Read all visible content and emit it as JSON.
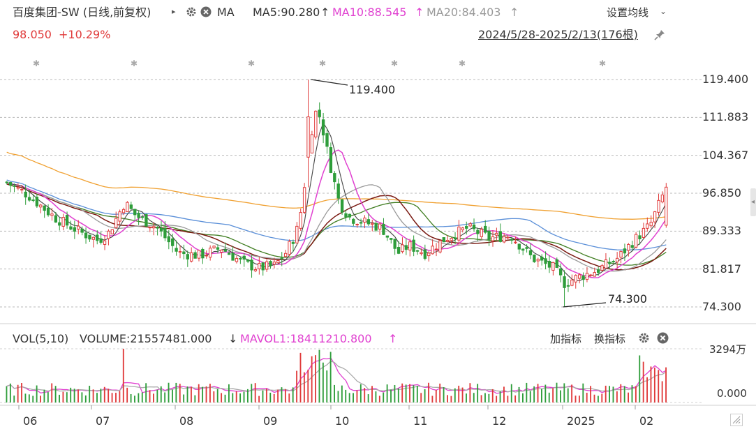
{
  "header": {
    "stock_title": "百度集团-SW (日线,前复权)",
    "ma_label": "MA",
    "ma5": "MA5:90.280",
    "ma10": "MA10:88.545",
    "ma20": "MA20:84.403",
    "price": "98.050",
    "change": "+10.29%",
    "settings_label": "设置均线",
    "date_range": "2024/5/28-2025/2/13(176根)"
  },
  "volume_header": {
    "vol_label": "VOL(5,10)",
    "volume_value": "VOLUME:21557481.000",
    "mavol1": "MAVOL1:18411210.800",
    "add_indicator": "加指标",
    "switch_indicator": "换指标"
  },
  "colors": {
    "up": "#e03a3a",
    "down": "#2e9d3a",
    "ma5": "#444444",
    "ma10": "#e040d0",
    "ma20": "#999999",
    "ma_dark": "#7a1a12",
    "ma_green": "#3f7d20",
    "ma_blue": "#5a8fd8",
    "ma_orange": "#f0a030",
    "price_text": "#e03a3a"
  },
  "chart_data": {
    "type": "candlestick",
    "y_ticks": [
      "119.400",
      "111.883",
      "104.367",
      "96.850",
      "89.333",
      "81.817",
      "74.300"
    ],
    "ylim": [
      74.3,
      119.4
    ],
    "volume_ticks": [
      "3294万",
      "0.000"
    ],
    "x_ticks": [
      "06",
      "07",
      "08",
      "09",
      "10",
      "11",
      "12",
      "2025",
      "02"
    ],
    "annotations": {
      "high": "119.400",
      "low": "74.300"
    },
    "last_close": 98.05,
    "moving_averages": {
      "MA5": 90.28,
      "MA10": 88.545,
      "MA20": 84.403
    },
    "volume_last": 21557481.0,
    "mavol1": 18411210.8,
    "bars_count": 176
  }
}
